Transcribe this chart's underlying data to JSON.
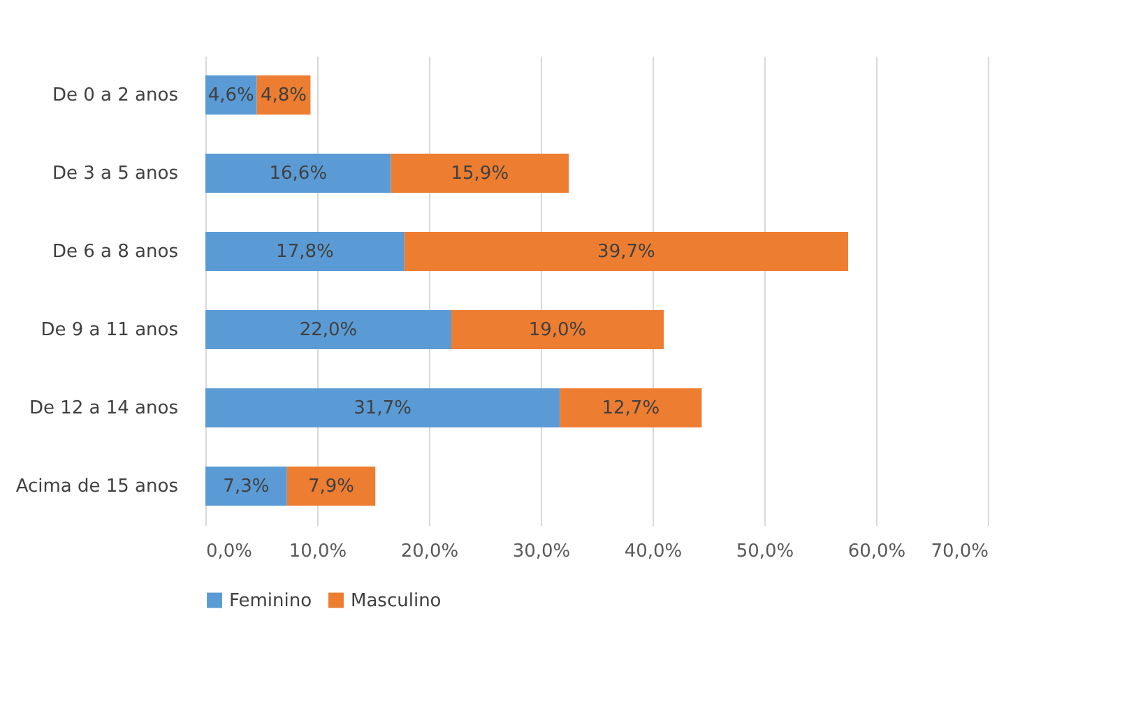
{
  "chart_data": {
    "type": "bar",
    "orientation": "horizontal",
    "stacked": true,
    "categories": [
      "De 0 a 2 anos",
      "De 3 a 5 anos",
      "De 6 a 8 anos",
      "De 9 a 11 anos",
      "De 12 a 14 anos",
      "Acima de 15 anos"
    ],
    "series": [
      {
        "name": "Feminino",
        "color": "#5b9bd5",
        "values": [
          4.6,
          16.6,
          17.8,
          22.0,
          31.7,
          7.3
        ],
        "value_labels": [
          "4,6%",
          "16,6%",
          "17,8%",
          "22,0%",
          "31,7%",
          "7,3%"
        ]
      },
      {
        "name": "Masculino",
        "color": "#ed7d31",
        "values": [
          4.8,
          15.9,
          39.7,
          19.0,
          12.7,
          7.9
        ],
        "value_labels": [
          "4,8%",
          "15,9%",
          "39,7%",
          "19,0%",
          "12,7%",
          "7,9%"
        ]
      }
    ],
    "xlim": [
      0,
      70
    ],
    "xticks": [
      {
        "value": 0,
        "label": "0,0%"
      },
      {
        "value": 10,
        "label": "10,0%"
      },
      {
        "value": 20,
        "label": "20,0%"
      },
      {
        "value": 30,
        "label": "30,0%"
      },
      {
        "value": 40,
        "label": "40,0%"
      },
      {
        "value": 50,
        "label": "50,0%"
      },
      {
        "value": 60,
        "label": "60,0%"
      },
      {
        "value": 70,
        "label": "70,0%"
      }
    ],
    "grid": "x",
    "legend": "bottom"
  }
}
